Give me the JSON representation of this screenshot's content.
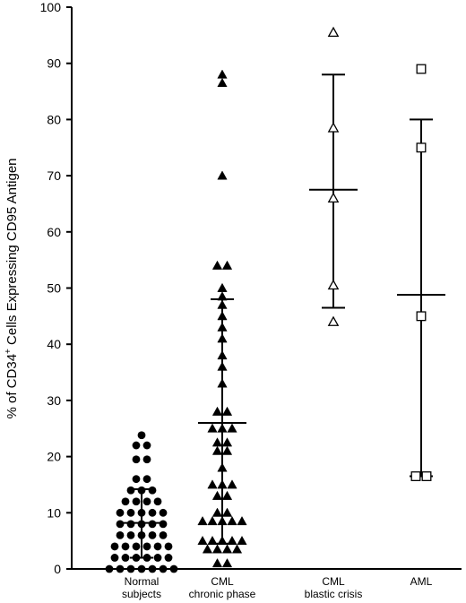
{
  "chart_data": {
    "type": "scatter",
    "title": "",
    "xlabel": "",
    "ylabel": {
      "prefix": "% of CD34",
      "superscript": "+",
      "suffix": " Cells Expressing CD95 Antigen"
    },
    "ylim": [
      0,
      100
    ],
    "yticks": [
      0,
      10,
      20,
      30,
      40,
      50,
      60,
      70,
      80,
      90,
      100
    ],
    "grid": false,
    "legend": "none",
    "groups": [
      {
        "label_lines": [
          "Normal",
          "subjects"
        ],
        "marker": "filled-circle",
        "mean": 8.2,
        "sd_low": 2.0,
        "sd_high": 14.2,
        "values": [
          0,
          0,
          0,
          0,
          0,
          0,
          0,
          2,
          2,
          2,
          2,
          2,
          2,
          4,
          4,
          4,
          4,
          4,
          4,
          6,
          6,
          6,
          6,
          6,
          8,
          8,
          8,
          8,
          8,
          10,
          10,
          10,
          10,
          10,
          12,
          12,
          12,
          12,
          14,
          14,
          14,
          16,
          16,
          19.5,
          19.5,
          22,
          22,
          23.8
        ]
      },
      {
        "label_lines": [
          "CML",
          "chronic phase"
        ],
        "marker": "filled-triangle",
        "mean": 26.0,
        "sd_low": 4.5,
        "sd_high": 48.0,
        "values": [
          1,
          1,
          3.5,
          3.5,
          3.5,
          3.5,
          5,
          5,
          5,
          5,
          5,
          8.5,
          8.5,
          8.5,
          8.5,
          8.5,
          10,
          10,
          13,
          13,
          15,
          15,
          15,
          18,
          21,
          21,
          22.5,
          22.5,
          25,
          25,
          25,
          28,
          28,
          33,
          36,
          38,
          41,
          43,
          45,
          47,
          48.5,
          50,
          54,
          54,
          70,
          86.5,
          88
        ]
      },
      {
        "label_lines": [
          "CML",
          "blastic crisis"
        ],
        "marker": "open-triangle",
        "mean": 67.5,
        "sd_low": 46.5,
        "sd_high": 88.0,
        "values": [
          95.5,
          78.5,
          66,
          50.5,
          44
        ]
      },
      {
        "label_lines": [
          "AML"
        ],
        "marker": "open-square",
        "mean": 48.8,
        "sd_low": 16.5,
        "sd_high": 80.0,
        "values": [
          89,
          75,
          45,
          16.5,
          16.5
        ]
      }
    ]
  }
}
